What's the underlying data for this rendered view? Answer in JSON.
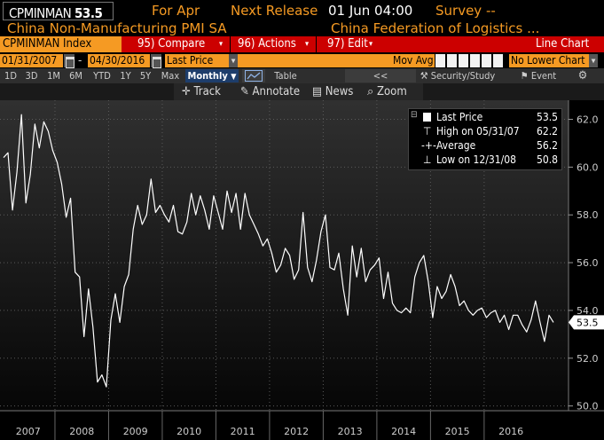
{
  "header": {
    "ticker": "CPMINMAN",
    "last_value": "53.5",
    "period_label": "For Apr",
    "release_label": "Next Release",
    "release_date": "01 Jun 04:00",
    "survey_label": "Survey --"
  },
  "subheader": {
    "name": "China Non-Manufacturing PMI SA",
    "source": "China Federation of Logistics ..."
  },
  "menu": {
    "index_label": "CPMINMAN Index",
    "compare": "95) Compare",
    "actions": "96) Actions",
    "edit": "97) Edit",
    "chart_type": "Line Chart"
  },
  "settings": {
    "start_date": "01/31/2007",
    "end_date": "04/30/2016",
    "date_separator": "-",
    "price_field": "Last Price",
    "avg_label": "Mov Avg",
    "lower_chart": "No Lower Chart"
  },
  "toolbar": {
    "ranges": [
      "1D",
      "3D",
      "1M",
      "6M",
      "YTD",
      "1Y",
      "5Y",
      "Max"
    ],
    "frequency": "Monthly",
    "table": "Table",
    "nav_back": "<<",
    "security_study": "Security/Study",
    "event": "Event"
  },
  "trackbar": {
    "track": "Track",
    "annotate": "Annotate",
    "news": "News",
    "zoom": "Zoom"
  },
  "legend": {
    "last_price_label": "Last Price",
    "last_price": "53.5",
    "high_label": "High on 05/31/07",
    "high": "62.2",
    "average_label": "Average",
    "average": "56.2",
    "low_label": "Low on 12/31/08",
    "low": "50.8"
  },
  "chart_data": {
    "type": "line",
    "ylim": [
      49.8,
      62.8
    ],
    "yticks": [
      50.0,
      52.0,
      54.0,
      56.0,
      58.0,
      60.0,
      62.0
    ],
    "xlabels": [
      "2007",
      "2008",
      "2009",
      "2010",
      "2011",
      "2012",
      "2013",
      "2014",
      "2015",
      "2016"
    ],
    "last_value_tag": "53.5",
    "series": [
      {
        "values": [
          60.4,
          60.6,
          58.2,
          59.8,
          62.2,
          58.5,
          59.7,
          61.8,
          60.8,
          61.9,
          61.5,
          60.7,
          60.2,
          59.3,
          57.9,
          58.7,
          55.6,
          55.4,
          52.9,
          54.9,
          53.3,
          51.0,
          51.3,
          50.8,
          53.6,
          54.7,
          53.5,
          55.0,
          55.5,
          57.4,
          58.4,
          57.6,
          58.0,
          59.5,
          58.1,
          58.4,
          58.0,
          57.7,
          58.4,
          57.3,
          57.2,
          57.7,
          58.9,
          58.0,
          58.8,
          58.2,
          57.4,
          58.8,
          58.1,
          57.4,
          59.0,
          58.1,
          58.9,
          57.4,
          58.9,
          58.0,
          57.6,
          57.2,
          56.7,
          57.0,
          56.4,
          55.6,
          55.9,
          56.6,
          56.3,
          55.3,
          55.7,
          58.1,
          55.8,
          55.2,
          56.1,
          57.3,
          58.0,
          55.8,
          55.7,
          56.4,
          54.9,
          53.8,
          56.7,
          55.4,
          56.6,
          55.2,
          55.7,
          55.9,
          56.2,
          54.5,
          55.6,
          54.3,
          54.0,
          53.9,
          54.1,
          53.9,
          55.4,
          56.0,
          56.3,
          55.2,
          53.7,
          55.0,
          54.5,
          54.8,
          55.5,
          55.0,
          54.2,
          54.4,
          54.0,
          53.8,
          54.0,
          54.1,
          53.7,
          53.9,
          54.0,
          53.5,
          53.8,
          53.2,
          53.8,
          53.8,
          53.4,
          53.1,
          53.6,
          54.4,
          53.5,
          52.7,
          53.8,
          53.5
        ]
      }
    ]
  }
}
